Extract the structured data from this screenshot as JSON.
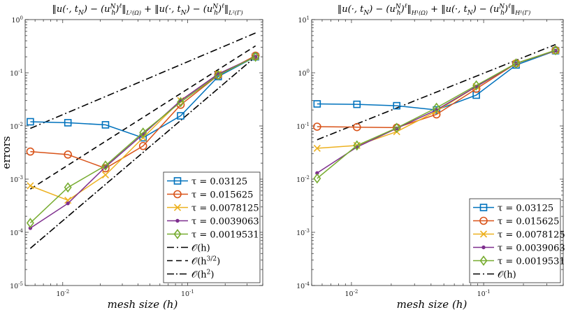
{
  "chart_data": [
    {
      "type": "line",
      "scale": "log-log",
      "title": "‖u(·,t_N) − (u_h^N)^ℓ‖_{L²(Ω)} + ‖u(·,t_N) − (u_h^N)^ℓ‖_{L²(Γ)}",
      "title_parts": {
        "a": "‖u(·, t",
        "a_sub": "N",
        "b": ") − (u",
        "b_sub": "h",
        "b_sup": "N",
        "c": ")",
        "c_sup": "ℓ",
        "d": "‖",
        "d_sub": "L²(Ω)",
        "e": " + ‖u(·, t",
        "e_sub": "N",
        "f": ") − (u",
        "f_sub": "h",
        "f_sup": "N",
        "g": ")",
        "g_sup": "ℓ",
        "h": "‖",
        "h_sub": "L²(Γ)"
      },
      "xlabel": "mesh size (h)",
      "ylabel": "errors",
      "xlim": [
        0.005,
        0.4
      ],
      "ylim": [
        1e-05,
        1
      ],
      "x_ticks": [
        {
          "value": 0.01,
          "mant": "10",
          "exp": "-2"
        },
        {
          "value": 0.1,
          "mant": "10",
          "exp": "-1"
        }
      ],
      "y_ticks": [
        {
          "value": 1e-05,
          "mant": "10",
          "exp": "-5"
        },
        {
          "value": 0.0001,
          "mant": "10",
          "exp": "-4"
        },
        {
          "value": 0.001,
          "mant": "10",
          "exp": "-3"
        },
        {
          "value": 0.01,
          "mant": "10",
          "exp": "-2"
        },
        {
          "value": 0.1,
          "mant": "10",
          "exp": "-1"
        },
        {
          "value": 1,
          "mant": "10",
          "exp": "0"
        }
      ],
      "x": [
        0.0055,
        0.011,
        0.022,
        0.044,
        0.088,
        0.176,
        0.35
      ],
      "series": [
        {
          "name": "τ = 0.03125",
          "color": "#0072bd",
          "marker": "square",
          "values": [
            0.012,
            0.0115,
            0.0105,
            0.006,
            0.0155,
            0.085,
            0.2
          ]
        },
        {
          "name": "τ = 0.015625",
          "color": "#d95319",
          "marker": "circle",
          "values": [
            0.0033,
            0.0029,
            0.0016,
            0.0042,
            0.025,
            0.09,
            0.21
          ]
        },
        {
          "name": "τ = 0.0078125",
          "color": "#edb120",
          "marker": "x",
          "values": [
            0.00075,
            0.0004,
            0.0012,
            0.006,
            0.03,
            0.095,
            0.2
          ]
        },
        {
          "name": "τ = 0.0039063",
          "color": "#7e2f8e",
          "marker": "dot",
          "values": [
            0.00012,
            0.00035,
            0.0017,
            0.007,
            0.03,
            0.095,
            0.2
          ]
        },
        {
          "name": "τ = 0.0019531",
          "color": "#77ac30",
          "marker": "diamond",
          "values": [
            0.00015,
            0.0007,
            0.0018,
            0.0075,
            0.028,
            0.09,
            0.2
          ]
        }
      ],
      "reference_lines": [
        {
          "name": "𝒪(h)",
          "label_base": "𝒪(h)",
          "label_sup": "",
          "dash": "10,4,2,4",
          "x": [
            0.0055,
            0.35
          ],
          "values": [
            0.009,
            0.56
          ]
        },
        {
          "name": "𝒪(h^{3/2})",
          "label_base": "𝒪(h",
          "label_sup": "3/2",
          "label_tail": ")",
          "dash": "8,5",
          "x": [
            0.0055,
            0.35
          ],
          "values": [
            0.00065,
            0.32
          ]
        },
        {
          "name": "𝒪(h²)",
          "label_base": "𝒪(h",
          "label_sup": "2",
          "label_tail": ")",
          "dash": "10,3,2,3",
          "x": [
            0.0055,
            0.35
          ],
          "values": [
            5e-05,
            0.2
          ]
        }
      ],
      "legend_position": "bottom-right",
      "grid": false
    },
    {
      "type": "line",
      "scale": "log-log",
      "title": "‖u(·,t_N) − (u_h^N)^ℓ‖_{H¹(Ω)} + ‖u(·,t_N) − (u_h^N)^ℓ‖_{H¹(Γ)}",
      "title_parts": {
        "a": "‖u(·, t",
        "a_sub": "N",
        "b": ") − (u",
        "b_sub": "h",
        "b_sup": "N",
        "c": ")",
        "c_sup": "ℓ",
        "d": "‖",
        "d_sub": "H¹(Ω)",
        "e": " + ‖u(·, t",
        "e_sub": "N",
        "f": ") − (u",
        "f_sub": "h",
        "f_sup": "N",
        "g": ")",
        "g_sup": "ℓ",
        "h": "‖",
        "h_sub": "H¹(Γ)"
      },
      "xlabel": "mesh size (h)",
      "ylabel": "",
      "xlim": [
        0.005,
        0.4
      ],
      "ylim": [
        0.0001,
        10
      ],
      "x_ticks": [
        {
          "value": 0.01,
          "mant": "10",
          "exp": "-2"
        },
        {
          "value": 0.1,
          "mant": "10",
          "exp": "-1"
        }
      ],
      "y_ticks": [
        {
          "value": 0.0001,
          "mant": "10",
          "exp": "-4"
        },
        {
          "value": 0.001,
          "mant": "10",
          "exp": "-3"
        },
        {
          "value": 0.01,
          "mant": "10",
          "exp": "-2"
        },
        {
          "value": 0.1,
          "mant": "10",
          "exp": "-1"
        },
        {
          "value": 1,
          "mant": "10",
          "exp": "0"
        },
        {
          "value": 10,
          "mant": "10",
          "exp": "1"
        }
      ],
      "x": [
        0.0055,
        0.011,
        0.022,
        0.044,
        0.088,
        0.176,
        0.35
      ],
      "series": [
        {
          "name": "τ = 0.03125",
          "color": "#0072bd",
          "marker": "square",
          "values": [
            0.26,
            0.255,
            0.24,
            0.2,
            0.38,
            1.4,
            2.6
          ]
        },
        {
          "name": "τ = 0.015625",
          "color": "#d95319",
          "marker": "circle",
          "values": [
            0.097,
            0.095,
            0.093,
            0.165,
            0.5,
            1.5,
            2.65
          ]
        },
        {
          "name": "τ = 0.0078125",
          "color": "#edb120",
          "marker": "x",
          "values": [
            0.038,
            0.043,
            0.078,
            0.19,
            0.55,
            1.5,
            2.6
          ]
        },
        {
          "name": "τ = 0.0039063",
          "color": "#7e2f8e",
          "marker": "dot",
          "values": [
            0.013,
            0.04,
            0.09,
            0.2,
            0.55,
            1.5,
            2.6
          ]
        },
        {
          "name": "τ = 0.0019531",
          "color": "#77ac30",
          "marker": "diamond",
          "values": [
            0.0103,
            0.043,
            0.092,
            0.22,
            0.58,
            1.5,
            2.65
          ]
        }
      ],
      "reference_lines": [
        {
          "name": "𝒪(h)",
          "label_base": "𝒪(h)",
          "label_sup": "",
          "dash": "10,4,2,4",
          "x": [
            0.0055,
            0.35
          ],
          "values": [
            0.055,
            3.4
          ]
        }
      ],
      "legend_position": "bottom-right",
      "grid": false
    }
  ]
}
